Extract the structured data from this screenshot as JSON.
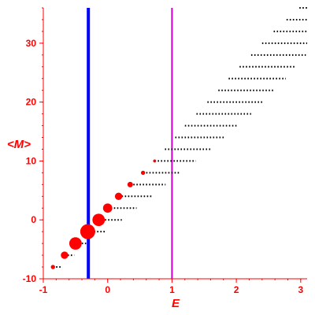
{
  "chart_data": {
    "type": "scatter",
    "title": "",
    "xlabel": "E",
    "ylabel": "<M>",
    "xlim": [
      -1,
      3.1
    ],
    "ylim": [
      -10,
      36
    ],
    "x_ticks": [
      -1,
      0,
      1,
      2,
      3
    ],
    "y_ticks": [
      -10,
      0,
      10,
      20,
      30
    ],
    "grid": false,
    "colors": {
      "axis": "#ff0000",
      "tick_label": "#ff0000",
      "axis_label": "#ff0000",
      "dots": "#000000",
      "marker": "#ff0000",
      "vline1": "#0000ff",
      "vline2": "#cc00cc"
    },
    "vertical_lines": [
      {
        "x": -0.3,
        "color": "#0000ff"
      },
      {
        "x": 1.0,
        "color": "#cc00cc"
      }
    ],
    "bands": [
      {
        "m": -8,
        "x_start": -0.85,
        "x_end": -0.72
      },
      {
        "m": -6,
        "x_start": -0.67,
        "x_end": -0.52
      },
      {
        "m": -4,
        "x_start": -0.5,
        "x_end": -0.32
      },
      {
        "m": -2,
        "x_start": -0.31,
        "x_end": -0.02
      },
      {
        "m": 0,
        "x_start": -0.14,
        "x_end": 0.22
      },
      {
        "m": 2,
        "x_start": 0.0,
        "x_end": 0.45
      },
      {
        "m": 4,
        "x_start": 0.17,
        "x_end": 0.68
      },
      {
        "m": 6,
        "x_start": 0.35,
        "x_end": 0.9
      },
      {
        "m": 8,
        "x_start": 0.55,
        "x_end": 1.13
      },
      {
        "m": 10,
        "x_start": 0.73,
        "x_end": 1.37
      },
      {
        "m": 12,
        "x_start": 0.89,
        "x_end": 1.6
      },
      {
        "m": 14,
        "x_start": 1.05,
        "x_end": 1.82
      },
      {
        "m": 16,
        "x_start": 1.2,
        "x_end": 2.03
      },
      {
        "m": 18,
        "x_start": 1.38,
        "x_end": 2.23
      },
      {
        "m": 20,
        "x_start": 1.55,
        "x_end": 2.42
      },
      {
        "m": 22,
        "x_start": 1.72,
        "x_end": 2.6
      },
      {
        "m": 24,
        "x_start": 1.88,
        "x_end": 2.77
      },
      {
        "m": 26,
        "x_start": 2.05,
        "x_end": 2.93
      },
      {
        "m": 28,
        "x_start": 2.23,
        "x_end": 3.08
      },
      {
        "m": 30,
        "x_start": 2.4,
        "x_end": 3.1
      },
      {
        "m": 32,
        "x_start": 2.58,
        "x_end": 3.1
      },
      {
        "m": 34,
        "x_start": 2.78,
        "x_end": 3.1
      },
      {
        "m": 36,
        "x_start": 2.98,
        "x_end": 3.1
      }
    ],
    "markers": [
      {
        "x": -0.85,
        "y": -8,
        "weight": 0.15
      },
      {
        "x": -0.67,
        "y": -6,
        "weight": 0.4
      },
      {
        "x": -0.5,
        "y": -4,
        "weight": 0.8
      },
      {
        "x": -0.31,
        "y": -2,
        "weight": 1.0
      },
      {
        "x": -0.14,
        "y": 0,
        "weight": 0.8
      },
      {
        "x": 0.0,
        "y": 2,
        "weight": 0.55
      },
      {
        "x": 0.17,
        "y": 4,
        "weight": 0.4
      },
      {
        "x": 0.35,
        "y": 6,
        "weight": 0.25
      },
      {
        "x": 0.55,
        "y": 8,
        "weight": 0.15
      },
      {
        "x": 0.73,
        "y": 10,
        "weight": 0.05
      }
    ]
  }
}
